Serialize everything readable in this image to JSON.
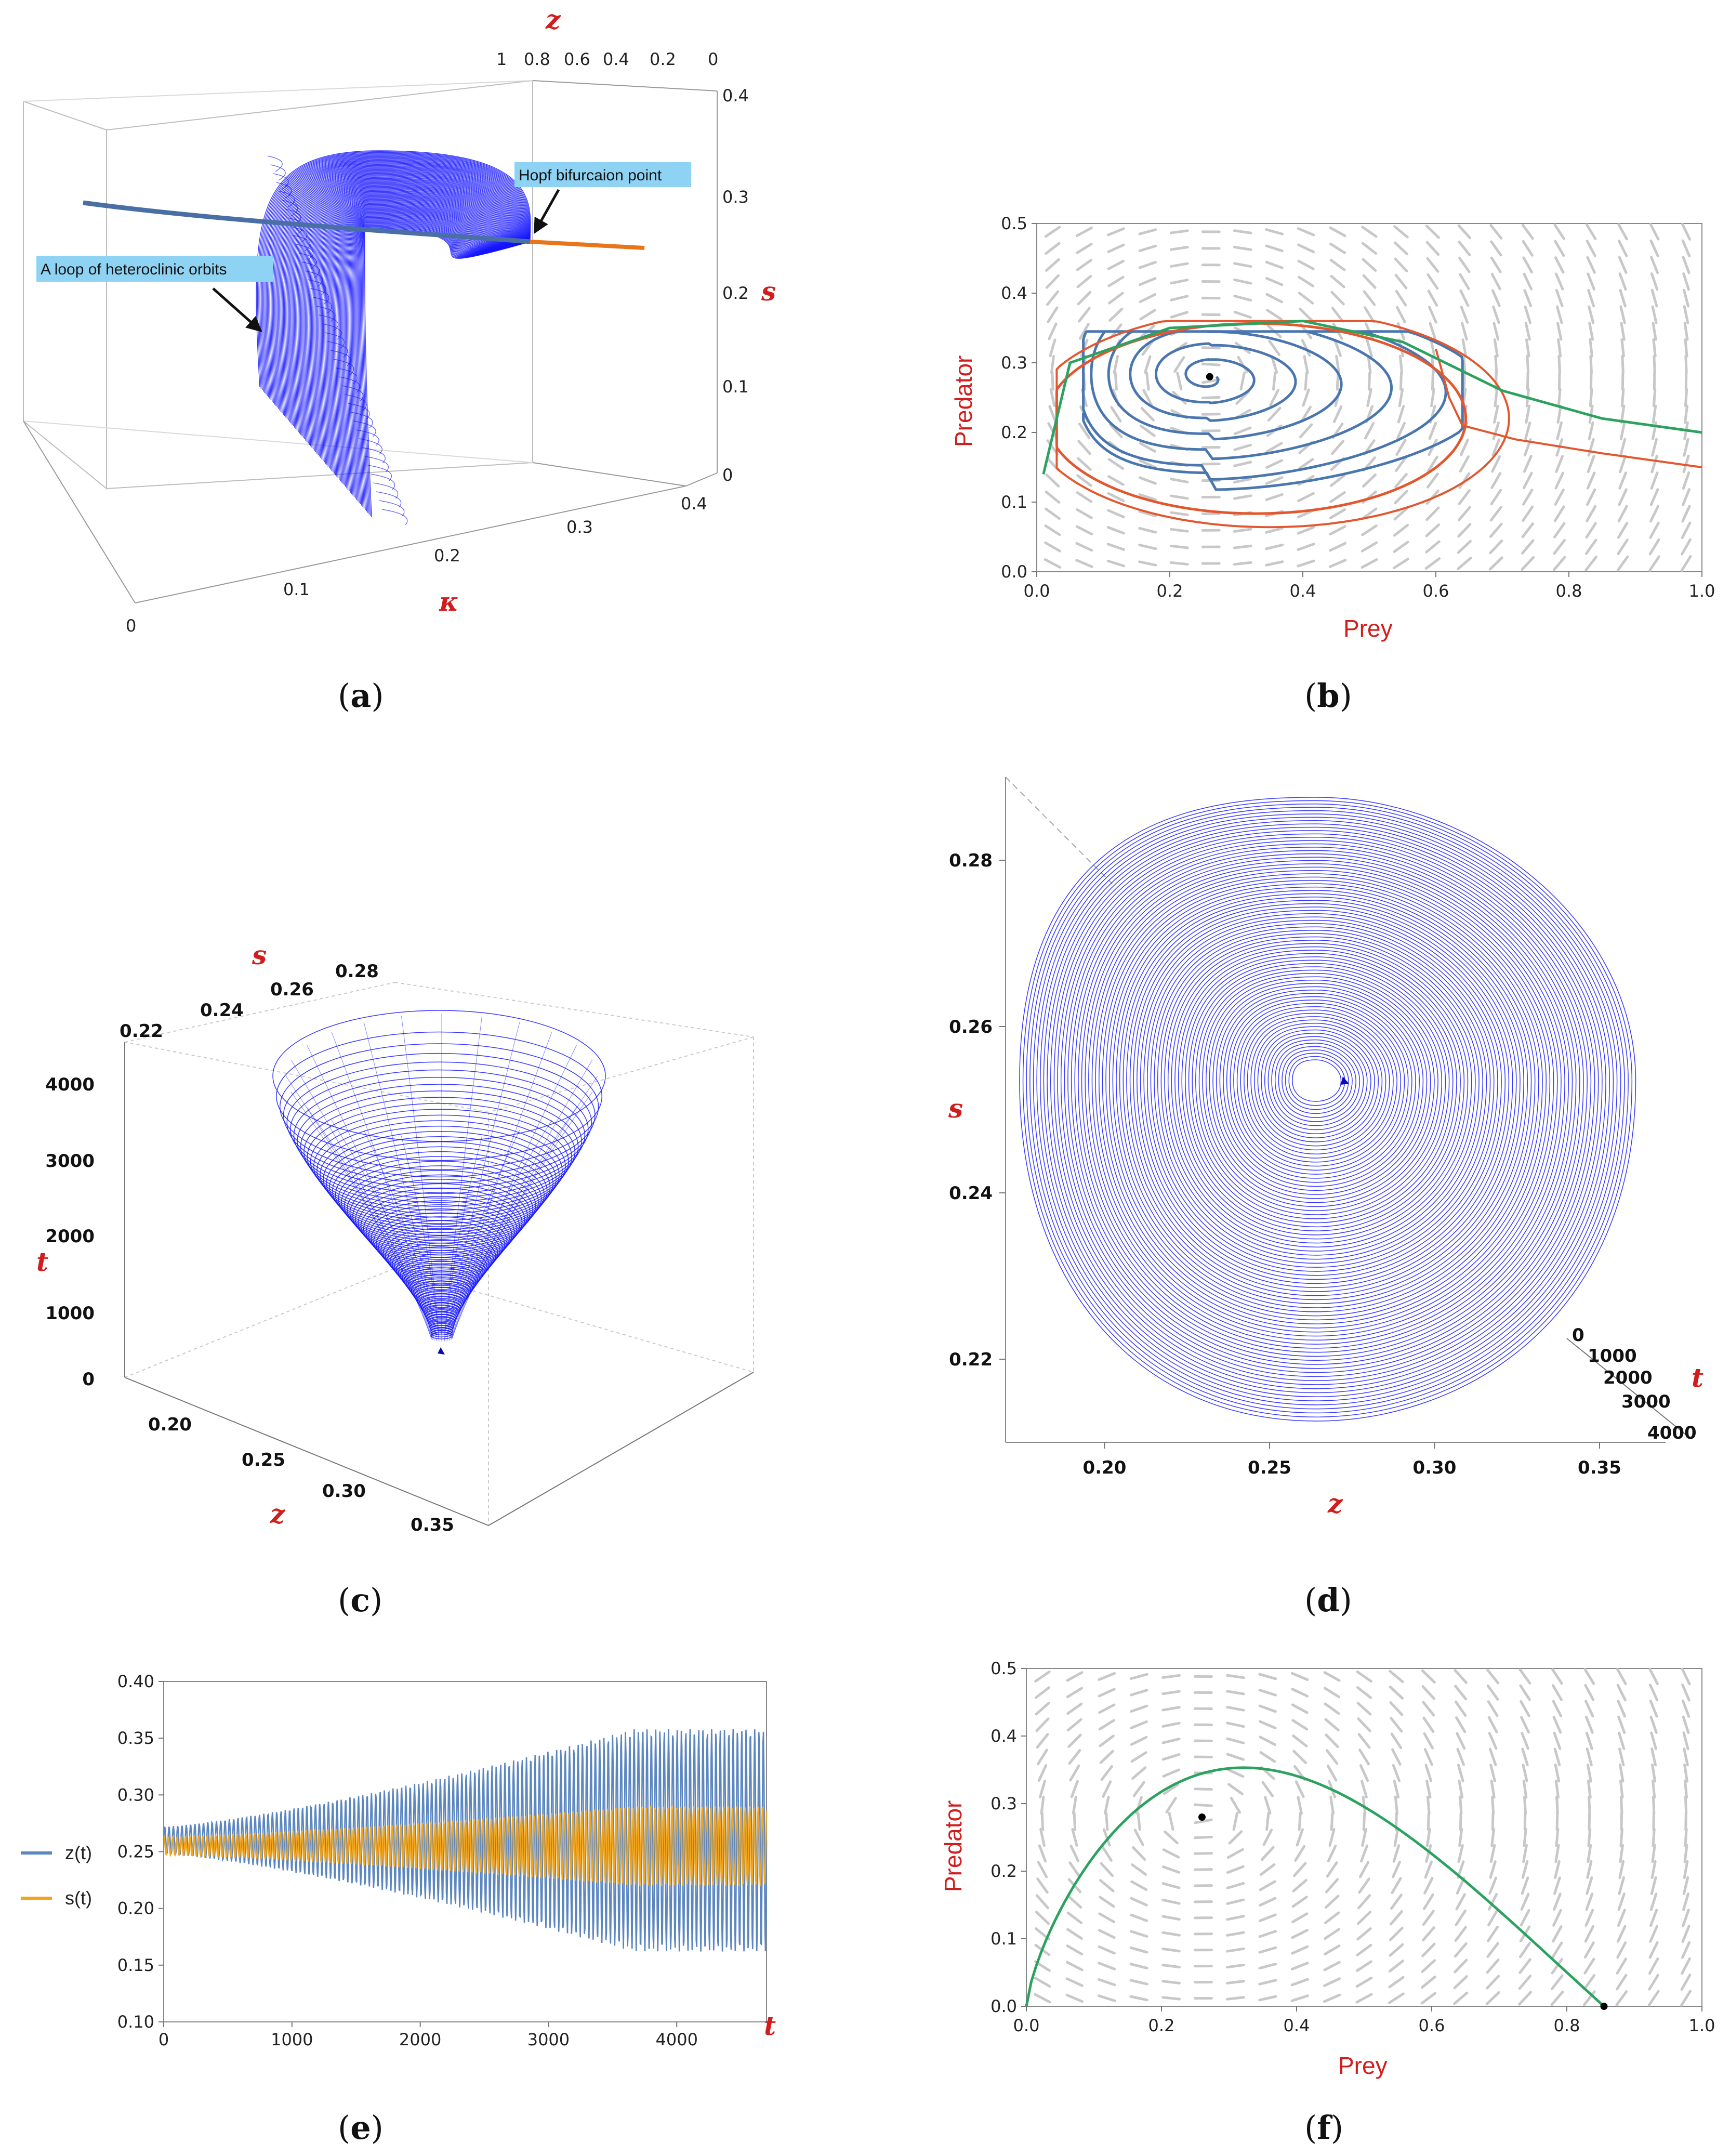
{
  "chart_data": [
    {
      "id": "a",
      "type": "surface3d",
      "caption": "a",
      "axes": {
        "z": {
          "label": "z",
          "ticks": [
            "1",
            "0.8",
            "0.6",
            "0.4",
            "0.2",
            "0"
          ]
        },
        "s": {
          "label": "s",
          "ticks": [
            "0.4",
            "0.3",
            "0.2",
            "0.1",
            "0"
          ]
        },
        "kappa": {
          "label": "κ",
          "ticks": [
            "0",
            "0.1",
            "0.2",
            "0.3",
            "0.4"
          ]
        }
      },
      "annotations": [
        "Hopf bifurcaion point",
        "A loop of heteroclinic orbits"
      ],
      "colors": {
        "surface": "#1414ff",
        "left_branch": "#4a6fa5",
        "right_branch": "#e8751a"
      }
    },
    {
      "id": "b",
      "type": "phase_portrait",
      "caption": "b",
      "xlabel": "Prey",
      "ylabel": "Predator",
      "xlim": [
        0,
        1.0
      ],
      "ylim": [
        0,
        0.5
      ],
      "xticks": [
        "0.0",
        "0.2",
        "0.4",
        "0.6",
        "0.8",
        "1.0"
      ],
      "yticks": [
        "0.0",
        "0.1",
        "0.2",
        "0.3",
        "0.4",
        "0.5"
      ],
      "equilibrium": [
        0.26,
        0.28
      ],
      "colors": {
        "spiral": "#4a76b0",
        "outer": "#e4572e",
        "green": "#2ca25f",
        "field": "#c8c8c8"
      }
    },
    {
      "id": "c",
      "type": "surface3d",
      "caption": "c",
      "axes": {
        "s": {
          "label": "s",
          "ticks": [
            "0.22",
            "0.24",
            "0.26",
            "0.28"
          ]
        },
        "t": {
          "label": "t",
          "ticks": [
            "4000",
            "3000",
            "2000",
            "1000",
            "0"
          ]
        },
        "z": {
          "label": "z",
          "ticks": [
            "0.20",
            "0.25",
            "0.30",
            "0.35"
          ]
        }
      },
      "colors": {
        "surface": "#1414ff"
      }
    },
    {
      "id": "d",
      "type": "spiral_projection",
      "caption": "d",
      "xlabel": "z",
      "ylabel": "s",
      "xlim": [
        0.17,
        0.37
      ],
      "ylim": [
        0.21,
        0.29
      ],
      "xticks": [
        0.2,
        0.25,
        0.3,
        0.35
      ],
      "xtick_labels": [
        "0.20",
        "0.25",
        "0.30",
        "0.35"
      ],
      "yticks": [
        0.22,
        0.24,
        0.26,
        0.28
      ],
      "ytick_labels": [
        "0.22",
        "0.24",
        "0.26",
        "0.28"
      ],
      "t_axis": {
        "label": "t",
        "ticks": [
          "0",
          "1000",
          "2000",
          "3000",
          "4000"
        ]
      },
      "colors": {
        "spiral": "#1414ff"
      }
    },
    {
      "id": "e",
      "type": "line",
      "caption": "e",
      "xlabel": "t",
      "xlim": [
        0,
        4700
      ],
      "ylim": [
        0.1,
        0.4
      ],
      "xticks": [
        0,
        1000,
        2000,
        3000,
        4000
      ],
      "xtick_labels": [
        "0",
        "1000",
        "2000",
        "3000",
        "4000"
      ],
      "yticks": [
        0.1,
        0.15,
        0.2,
        0.25,
        0.3,
        0.35,
        0.4
      ],
      "ytick_labels": [
        "0.10",
        "0.15",
        "0.20",
        "0.25",
        "0.30",
        "0.35",
        "0.40"
      ],
      "series": [
        {
          "name": "z(t)",
          "color": "#5b86c0",
          "center": 0.26,
          "amp_start": 0.012,
          "amp_end": 0.098
        },
        {
          "name": "s(t)",
          "color": "#f2a51c",
          "center": 0.255,
          "amp_start": 0.008,
          "amp_end": 0.035
        }
      ]
    },
    {
      "id": "f",
      "type": "phase_portrait",
      "caption": "f",
      "xlabel": "Prey",
      "ylabel": "Predator",
      "xlim": [
        0,
        1.0
      ],
      "ylim": [
        0,
        0.5
      ],
      "xticks": [
        "0.0",
        "0.2",
        "0.4",
        "0.6",
        "0.8",
        "1.0"
      ],
      "yticks": [
        "0.0",
        "0.1",
        "0.2",
        "0.3",
        "0.4",
        "0.5"
      ],
      "equilibrium": [
        0.26,
        0.28
      ],
      "saddle": [
        0.855,
        0.0
      ],
      "colors": {
        "green": "#2ca25f",
        "field": "#c8c8c8"
      }
    }
  ]
}
